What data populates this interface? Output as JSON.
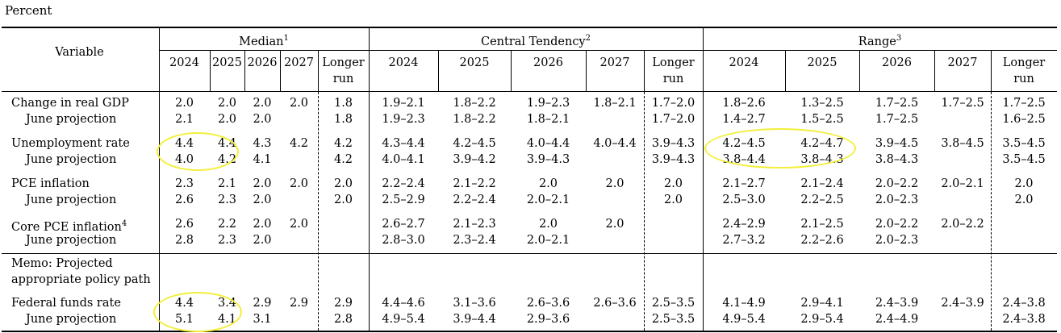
{
  "unit_label": "Percent",
  "header": {
    "variable": "Variable",
    "groups": [
      {
        "name": "Median",
        "note": "1"
      },
      {
        "name": "Central Tendency",
        "note": "2"
      },
      {
        "name": "Range",
        "note": "3"
      }
    ],
    "years": [
      "2024",
      "2025",
      "2026",
      "2027"
    ],
    "longer_run": [
      "Longer",
      "run"
    ]
  },
  "rows": [
    {
      "label": "Change in real GDP",
      "cells": [
        "2.0",
        "2.0",
        "2.0",
        "2.0",
        "1.8",
        "1.9–2.1",
        "1.8–2.2",
        "1.9–2.3",
        "1.8–2.1",
        "1.7–2.0",
        "1.8–2.6",
        "1.3–2.5",
        "1.7–2.5",
        "1.7–2.5",
        "1.7–2.5"
      ]
    },
    {
      "label": "June projection",
      "cells": [
        "2.1",
        "2.0",
        "2.0",
        "",
        "1.8",
        "1.9–2.3",
        "1.8–2.2",
        "1.8–2.1",
        "",
        "1.7–2.0",
        "1.4–2.7",
        "1.5–2.5",
        "1.7–2.5",
        "",
        "1.6–2.5"
      ]
    },
    {
      "label": "Unemployment rate",
      "cells": [
        "4.4",
        "4.4",
        "4.3",
        "4.2",
        "4.2",
        "4.3–4.4",
        "4.2–4.5",
        "4.0–4.4",
        "4.0–4.4",
        "3.9–4.3",
        "4.2–4.5",
        "4.2–4.7",
        "3.9–4.5",
        "3.8–4.5",
        "3.5–4.5"
      ]
    },
    {
      "label": "June projection",
      "cells": [
        "4.0",
        "4.2",
        "4.1",
        "",
        "4.2",
        "4.0–4.1",
        "3.9–4.2",
        "3.9–4.3",
        "",
        "3.9–4.3",
        "3.8–4.4",
        "3.8–4.3",
        "3.8–4.3",
        "",
        "3.5–4.5"
      ]
    },
    {
      "label": "PCE inflation",
      "cells": [
        "2.3",
        "2.1",
        "2.0",
        "2.0",
        "2.0",
        "2.2–2.4",
        "2.1–2.2",
        "2.0",
        "2.0",
        "2.0",
        "2.1–2.7",
        "2.1–2.4",
        "2.0–2.2",
        "2.0–2.1",
        "2.0"
      ]
    },
    {
      "label": "June projection",
      "cells": [
        "2.6",
        "2.3",
        "2.0",
        "",
        "2.0",
        "2.5–2.9",
        "2.2–2.4",
        "2.0–2.1",
        "",
        "2.0",
        "2.5–3.0",
        "2.2–2.5",
        "2.0–2.3",
        "",
        "2.0"
      ]
    },
    {
      "label": "Core PCE inflation",
      "note": "4",
      "cells": [
        "2.6",
        "2.2",
        "2.0",
        "2.0",
        "",
        "2.6–2.7",
        "2.1–2.3",
        "2.0",
        "2.0",
        "",
        "2.4–2.9",
        "2.1–2.5",
        "2.0–2.2",
        "2.0–2.2",
        ""
      ]
    },
    {
      "label": "June projection",
      "cells": [
        "2.8",
        "2.3",
        "2.0",
        "",
        "",
        "2.8–3.0",
        "2.3–2.4",
        "2.0–2.1",
        "",
        "",
        "2.7–3.2",
        "2.2–2.6",
        "2.0–2.3",
        "",
        ""
      ]
    },
    {
      "label": "Federal funds rate",
      "cells": [
        "4.4",
        "3.4",
        "2.9",
        "2.9",
        "2.9",
        "4.4–4.6",
        "3.1–3.6",
        "2.6–3.6",
        "2.6–3.6",
        "2.5–3.5",
        "4.1–4.9",
        "2.9–4.1",
        "2.4–3.9",
        "2.4–3.9",
        "2.4–3.8"
      ]
    },
    {
      "label": "June projection",
      "cells": [
        "5.1",
        "4.1",
        "3.1",
        "",
        "2.8",
        "4.9–5.4",
        "3.9–4.4",
        "2.9–3.6",
        "",
        "2.5–3.5",
        "4.9–5.4",
        "2.9–5.4",
        "2.4–4.9",
        "",
        "2.4–3.8"
      ]
    }
  ],
  "memo": [
    "Memo: Projected",
    "appropriate policy path"
  ],
  "highlight_color": "#f2ef3a"
}
